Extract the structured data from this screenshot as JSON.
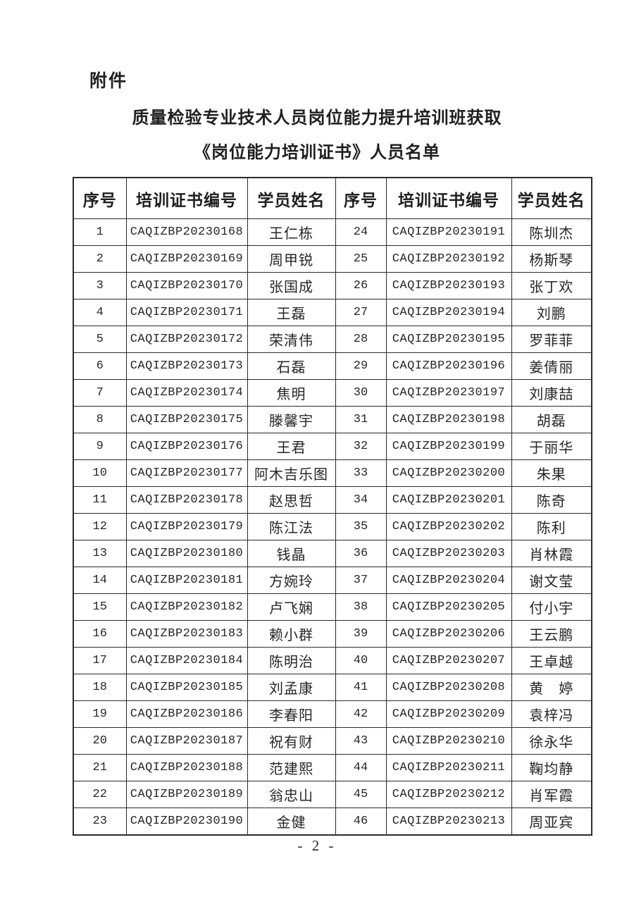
{
  "page": {
    "attachment_label": "附件",
    "title_line1": "质量检验专业技术人员岗位能力提升培训班获取",
    "title_line2": "《岗位能力培训证书》人员名单",
    "footer_page_label": "- 2 -"
  },
  "table": {
    "columns": [
      "序号",
      "培训证书编号",
      "学员姓名",
      "序号",
      "培训证书编号",
      "学员姓名"
    ],
    "rows_per_pane": 23,
    "entries": [
      {
        "no": "1",
        "cert": "CAQIZBP20230168",
        "name": "王仁栋"
      },
      {
        "no": "2",
        "cert": "CAQIZBP20230169",
        "name": "周甲锐"
      },
      {
        "no": "3",
        "cert": "CAQIZBP20230170",
        "name": "张国成"
      },
      {
        "no": "4",
        "cert": "CAQIZBP20230171",
        "name": "王磊"
      },
      {
        "no": "5",
        "cert": "CAQIZBP20230172",
        "name": "荣清伟"
      },
      {
        "no": "6",
        "cert": "CAQIZBP20230173",
        "name": "石磊"
      },
      {
        "no": "7",
        "cert": "CAQIZBP20230174",
        "name": "焦明"
      },
      {
        "no": "8",
        "cert": "CAQIZBP20230175",
        "name": "滕馨宇"
      },
      {
        "no": "9",
        "cert": "CAQIZBP20230176",
        "name": "王君"
      },
      {
        "no": "10",
        "cert": "CAQIZBP20230177",
        "name": "阿木吉乐图"
      },
      {
        "no": "11",
        "cert": "CAQIZBP20230178",
        "name": "赵思哲"
      },
      {
        "no": "12",
        "cert": "CAQIZBP20230179",
        "name": "陈江法"
      },
      {
        "no": "13",
        "cert": "CAQIZBP20230180",
        "name": "钱晶"
      },
      {
        "no": "14",
        "cert": "CAQIZBP20230181",
        "name": "方婉玲"
      },
      {
        "no": "15",
        "cert": "CAQIZBP20230182",
        "name": "卢飞娴"
      },
      {
        "no": "16",
        "cert": "CAQIZBP20230183",
        "name": "赖小群"
      },
      {
        "no": "17",
        "cert": "CAQIZBP20230184",
        "name": "陈明治"
      },
      {
        "no": "18",
        "cert": "CAQIZBP20230185",
        "name": "刘孟康"
      },
      {
        "no": "19",
        "cert": "CAQIZBP20230186",
        "name": "李春阳"
      },
      {
        "no": "20",
        "cert": "CAQIZBP20230187",
        "name": "祝有财"
      },
      {
        "no": "21",
        "cert": "CAQIZBP20230188",
        "name": "范建熙"
      },
      {
        "no": "22",
        "cert": "CAQIZBP20230189",
        "name": "翁忠山"
      },
      {
        "no": "23",
        "cert": "CAQIZBP20230190",
        "name": "金健"
      },
      {
        "no": "24",
        "cert": "CAQIZBP20230191",
        "name": "陈圳杰"
      },
      {
        "no": "25",
        "cert": "CAQIZBP20230192",
        "name": "杨斯琴"
      },
      {
        "no": "26",
        "cert": "CAQIZBP20230193",
        "name": "张丁欢"
      },
      {
        "no": "27",
        "cert": "CAQIZBP20230194",
        "name": "刘鹏"
      },
      {
        "no": "28",
        "cert": "CAQIZBP20230195",
        "name": "罗菲菲"
      },
      {
        "no": "29",
        "cert": "CAQIZBP20230196",
        "name": "姜倩丽"
      },
      {
        "no": "30",
        "cert": "CAQIZBP20230197",
        "name": "刘康喆"
      },
      {
        "no": "31",
        "cert": "CAQIZBP20230198",
        "name": "胡磊"
      },
      {
        "no": "32",
        "cert": "CAQIZBP20230199",
        "name": "于丽华"
      },
      {
        "no": "33",
        "cert": "CAQIZBP20230200",
        "name": "朱果"
      },
      {
        "no": "34",
        "cert": "CAQIZBP20230201",
        "name": "陈奇"
      },
      {
        "no": "35",
        "cert": "CAQIZBP20230202",
        "name": "陈利"
      },
      {
        "no": "36",
        "cert": "CAQIZBP20230203",
        "name": "肖林霞"
      },
      {
        "no": "37",
        "cert": "CAQIZBP20230204",
        "name": "谢文莹"
      },
      {
        "no": "38",
        "cert": "CAQIZBP20230205",
        "name": "付小宇"
      },
      {
        "no": "39",
        "cert": "CAQIZBP20230206",
        "name": "王云鹏"
      },
      {
        "no": "40",
        "cert": "CAQIZBP20230207",
        "name": "王卓越"
      },
      {
        "no": "41",
        "cert": "CAQIZBP20230208",
        "name": "黄　婷"
      },
      {
        "no": "42",
        "cert": "CAQIZBP20230209",
        "name": "袁梓冯"
      },
      {
        "no": "43",
        "cert": "CAQIZBP20230210",
        "name": "徐永华"
      },
      {
        "no": "44",
        "cert": "CAQIZBP20230211",
        "name": "鞠均静"
      },
      {
        "no": "45",
        "cert": "CAQIZBP20230212",
        "name": "肖军霞"
      },
      {
        "no": "46",
        "cert": "CAQIZBP20230213",
        "name": "周亚宾"
      }
    ]
  },
  "colors": {
    "background": "#ffffff",
    "text": "#1f1f1f",
    "border": "#2b2b2b"
  }
}
